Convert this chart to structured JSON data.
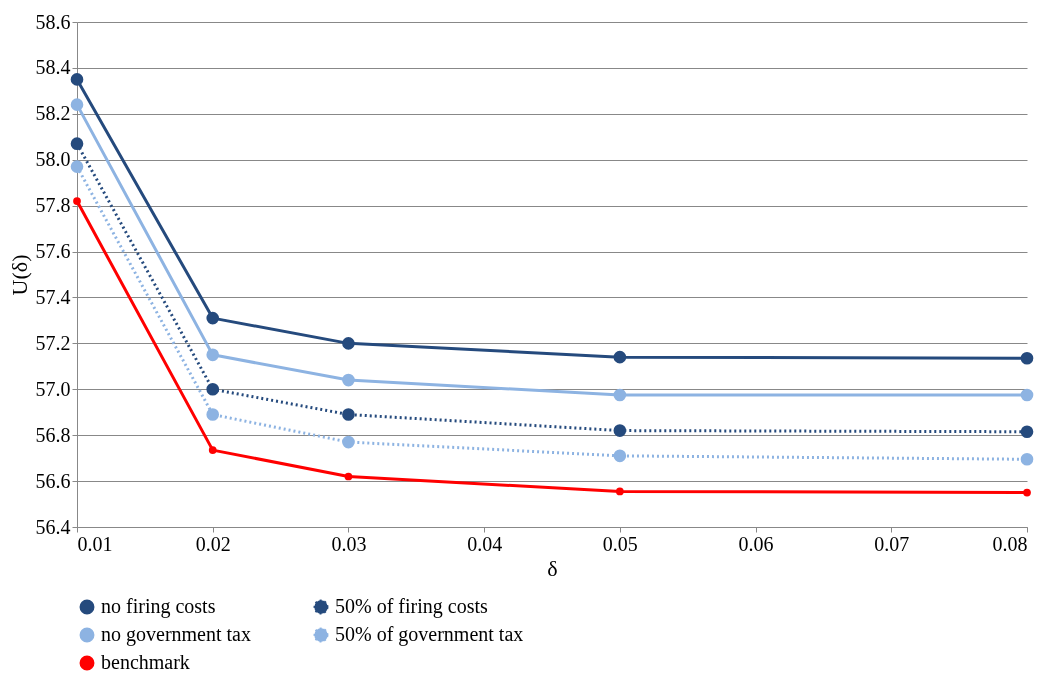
{
  "chart_data": {
    "type": "line",
    "xlabel": "δ",
    "ylabel": "U(δ)",
    "x": [
      0.01,
      0.02,
      0.03,
      0.05,
      0.08
    ],
    "xlim": [
      0.01,
      0.08
    ],
    "xticks": [
      0.01,
      0.02,
      0.03,
      0.04,
      0.05,
      0.06,
      0.07,
      0.08
    ],
    "ylim": [
      56.4,
      58.6
    ],
    "yticks": [
      56.4,
      56.6,
      56.8,
      {
        "value": 57,
        "label": "57.0"
      },
      57.2,
      57.4,
      57.6,
      57.8,
      {
        "value": 58,
        "label": "58.0"
      },
      58.2,
      58.4,
      58.6
    ],
    "grid": "y",
    "legend": "bottom",
    "marker": "circle",
    "series": [
      {
        "name": "no firing costs",
        "color": "#254a7d",
        "line_style": "solid",
        "values": [
          58.35,
          57.31,
          57.2,
          57.14,
          57.135
        ]
      },
      {
        "name": "50% of firing costs",
        "color": "#254a7d",
        "line_style": "dotted",
        "values": [
          58.07,
          57.0,
          56.89,
          56.82,
          56.815
        ]
      },
      {
        "name": "no government tax",
        "color": "#8db3e2",
        "line_style": "solid",
        "values": [
          58.24,
          57.15,
          57.04,
          56.975,
          56.975
        ]
      },
      {
        "name": "50% of government tax",
        "color": "#8db3e2",
        "line_style": "dotted",
        "values": [
          57.97,
          56.89,
          56.77,
          56.71,
          56.695
        ]
      },
      {
        "name": "benchmark",
        "color": "#ff0000",
        "line_style": "solid",
        "marker": "circle",
        "values": [
          57.82,
          56.735,
          56.62,
          56.555,
          56.55
        ]
      }
    ]
  }
}
